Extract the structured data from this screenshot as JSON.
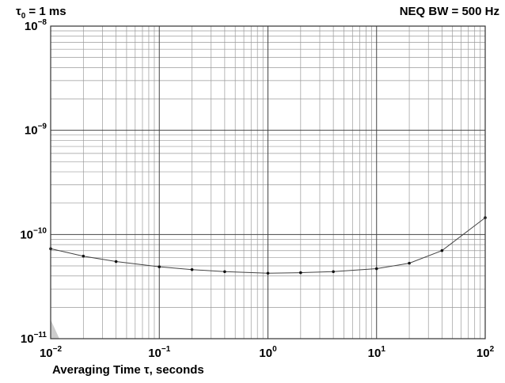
{
  "chart_data": {
    "type": "line",
    "title_left": "τ",
    "title_left_sub": "0",
    "title_left_rest": " = 1 ms",
    "title_right": "NEQ BW = 500 Hz",
    "xlabel": "Averaging Time τ, seconds",
    "ylabel": "",
    "x_scale": "log",
    "y_scale": "log",
    "xlim": [
      0.01,
      100
    ],
    "ylim": [
      1e-11,
      1e-08
    ],
    "grid": true,
    "x_ticks": [
      {
        "base": "10",
        "exp": "−2"
      },
      {
        "base": "10",
        "exp": "−1"
      },
      {
        "base": "10",
        "exp": "0"
      },
      {
        "base": "10",
        "exp": "1"
      },
      {
        "base": "10",
        "exp": "2"
      }
    ],
    "y_ticks": [
      {
        "base": "10",
        "exp": "−11"
      },
      {
        "base": "10",
        "exp": "−10"
      },
      {
        "base": "10",
        "exp": "−9"
      },
      {
        "base": "10",
        "exp": "−8"
      }
    ],
    "series": [
      {
        "x": [
          0.01,
          0.02,
          0.04,
          0.1,
          0.2,
          0.4,
          1,
          2,
          4,
          10,
          20,
          40,
          100
        ],
        "y": [
          7.3e-11,
          6.2e-11,
          5.5e-11,
          4.9e-11,
          4.6e-11,
          4.4e-11,
          4.25e-11,
          4.3e-11,
          4.4e-11,
          4.7e-11,
          5.3e-11,
          7e-11,
          1.45e-10
        ]
      }
    ],
    "colors": {
      "line": "#444444",
      "grid_major": "#444444",
      "grid_minor": "#9a9a9a",
      "shade": "#cccccc"
    }
  }
}
